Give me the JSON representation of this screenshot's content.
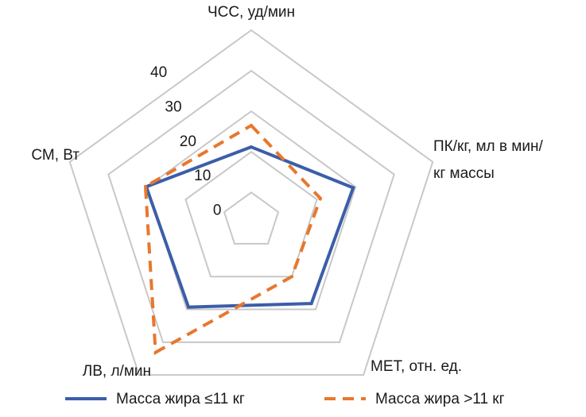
{
  "chart_data": {
    "type": "radar",
    "categories": [
      "ЧСС, уд/мин",
      "ПК/кг, мл в мин/ кг массы",
      "МЕТ, отн. ед.",
      "ЛВ, л/мин",
      "СМ, Вт"
    ],
    "ylim": [
      -7,
      40
    ],
    "yticks": [
      0,
      10,
      20,
      30,
      40
    ],
    "grid": true,
    "legend": "bottom",
    "series": [
      {
        "name": "Масса жира ≤11 кг",
        "color": "#3b5ea8",
        "dash": false,
        "values": [
          11.2,
          19.4,
          18.2,
          19.3,
          20.2
        ]
      },
      {
        "name": "Масса жира >11 кг",
        "color": "#e8772e",
        "dash": true,
        "values": [
          16.5,
          10.9,
          10,
          33.1,
          20.4
        ]
      }
    ]
  }
}
